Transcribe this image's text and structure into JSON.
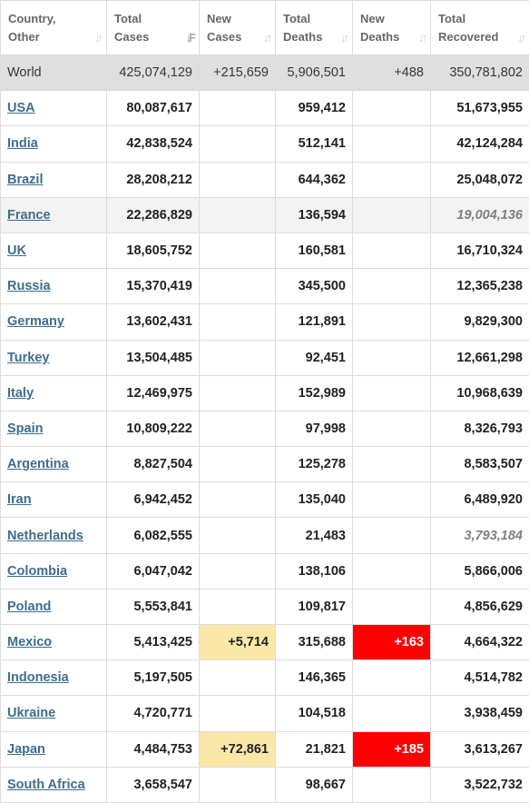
{
  "headers": [
    {
      "line1": "Country,",
      "line2": "Other"
    },
    {
      "line1": "Total",
      "line2": "Cases"
    },
    {
      "line1": "New",
      "line2": "Cases"
    },
    {
      "line1": "Total",
      "line2": "Deaths"
    },
    {
      "line1": "New",
      "line2": "Deaths"
    },
    {
      "line1": "Total",
      "line2": "Recovered"
    }
  ],
  "world": {
    "country": "World",
    "total_cases": "425,074,129",
    "new_cases": "+215,659",
    "total_deaths": "5,906,501",
    "new_deaths": "+488",
    "total_recovered": "350,781,802"
  },
  "rows": [
    {
      "country": "USA",
      "total_cases": "80,087,617",
      "new_cases": "",
      "total_deaths": "959,412",
      "new_deaths": "",
      "total_recovered": "51,673,955"
    },
    {
      "country": "India",
      "total_cases": "42,838,524",
      "new_cases": "",
      "total_deaths": "512,141",
      "new_deaths": "",
      "total_recovered": "42,124,284"
    },
    {
      "country": "Brazil",
      "total_cases": "28,208,212",
      "new_cases": "",
      "total_deaths": "644,362",
      "new_deaths": "",
      "total_recovered": "25,048,072"
    },
    {
      "country": "France",
      "total_cases": "22,286,829",
      "new_cases": "",
      "total_deaths": "136,594",
      "new_deaths": "",
      "total_recovered": "19,004,136"
    },
    {
      "country": "UK",
      "total_cases": "18,605,752",
      "new_cases": "",
      "total_deaths": "160,581",
      "new_deaths": "",
      "total_recovered": "16,710,324"
    },
    {
      "country": "Russia",
      "total_cases": "15,370,419",
      "new_cases": "",
      "total_deaths": "345,500",
      "new_deaths": "",
      "total_recovered": "12,365,238"
    },
    {
      "country": "Germany",
      "total_cases": "13,602,431",
      "new_cases": "",
      "total_deaths": "121,891",
      "new_deaths": "",
      "total_recovered": "9,829,300"
    },
    {
      "country": "Turkey",
      "total_cases": "13,504,485",
      "new_cases": "",
      "total_deaths": "92,451",
      "new_deaths": "",
      "total_recovered": "12,661,298"
    },
    {
      "country": "Italy",
      "total_cases": "12,469,975",
      "new_cases": "",
      "total_deaths": "152,989",
      "new_deaths": "",
      "total_recovered": "10,968,639"
    },
    {
      "country": "Spain",
      "total_cases": "10,809,222",
      "new_cases": "",
      "total_deaths": "97,998",
      "new_deaths": "",
      "total_recovered": "8,326,793"
    },
    {
      "country": "Argentina",
      "total_cases": "8,827,504",
      "new_cases": "",
      "total_deaths": "125,278",
      "new_deaths": "",
      "total_recovered": "8,583,507"
    },
    {
      "country": "Iran",
      "total_cases": "6,942,452",
      "new_cases": "",
      "total_deaths": "135,040",
      "new_deaths": "",
      "total_recovered": "6,489,920"
    },
    {
      "country": "Netherlands",
      "total_cases": "6,082,555",
      "new_cases": "",
      "total_deaths": "21,483",
      "new_deaths": "",
      "total_recovered": "3,793,184"
    },
    {
      "country": "Colombia",
      "total_cases": "6,047,042",
      "new_cases": "",
      "total_deaths": "138,106",
      "new_deaths": "",
      "total_recovered": "5,866,006"
    },
    {
      "country": "Poland",
      "total_cases": "5,553,841",
      "new_cases": "",
      "total_deaths": "109,817",
      "new_deaths": "",
      "total_recovered": "4,856,629"
    },
    {
      "country": "Mexico",
      "total_cases": "5,413,425",
      "new_cases": "+5,714",
      "total_deaths": "315,688",
      "new_deaths": "+163",
      "total_recovered": "4,664,322"
    },
    {
      "country": "Indonesia",
      "total_cases": "5,197,505",
      "new_cases": "",
      "total_deaths": "146,365",
      "new_deaths": "",
      "total_recovered": "4,514,782"
    },
    {
      "country": "Ukraine",
      "total_cases": "4,720,771",
      "new_cases": "",
      "total_deaths": "104,518",
      "new_deaths": "",
      "total_recovered": "3,938,459"
    },
    {
      "country": "Japan",
      "total_cases": "4,484,753",
      "new_cases": "+72,861",
      "total_deaths": "21,821",
      "new_deaths": "+185",
      "total_recovered": "3,613,267"
    },
    {
      "country": "South Africa",
      "total_cases": "3,658,547",
      "new_cases": "",
      "total_deaths": "98,667",
      "new_deaths": "",
      "total_recovered": "3,522,732"
    }
  ],
  "colors": {
    "link": "#3e6d8e",
    "world_bg": "#dfdfdf",
    "new_cases_bg": "#fbe8a9",
    "new_deaths_bg": "#ff0000"
  },
  "icons": {
    "sort_unsorted": "⇅",
    "sort_desc": "⇃F"
  }
}
